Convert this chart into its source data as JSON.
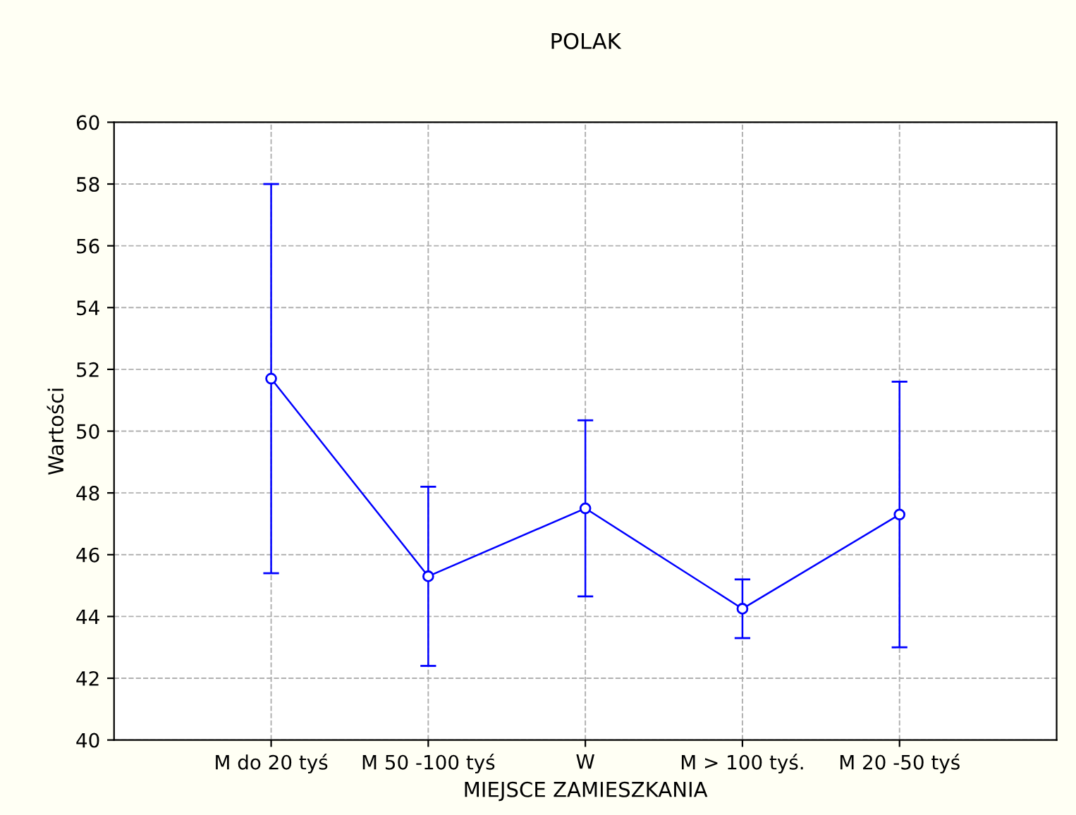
{
  "chart_data": {
    "type": "line",
    "title": "POLAK",
    "xlabel": "MIEJSCE ZAMIESZKANIA",
    "ylabel": "Wartości",
    "categories": [
      "M do 20 tyś",
      "M 50 -100 tyś",
      "W",
      "M > 100 tyś.",
      "M 20 -50 tyś"
    ],
    "series": [
      {
        "color": "#0000ff",
        "values": [
          51.7,
          45.3,
          47.5,
          44.25,
          47.3
        ],
        "errors": [
          6.3,
          2.9,
          2.85,
          0.95,
          4.3
        ]
      }
    ],
    "ylim": [
      40,
      60
    ],
    "yticks": [
      40,
      42,
      44,
      46,
      48,
      50,
      52,
      54,
      56,
      58,
      60
    ],
    "grid": true,
    "marker": "circle",
    "line_style": "solid",
    "legend": false
  }
}
